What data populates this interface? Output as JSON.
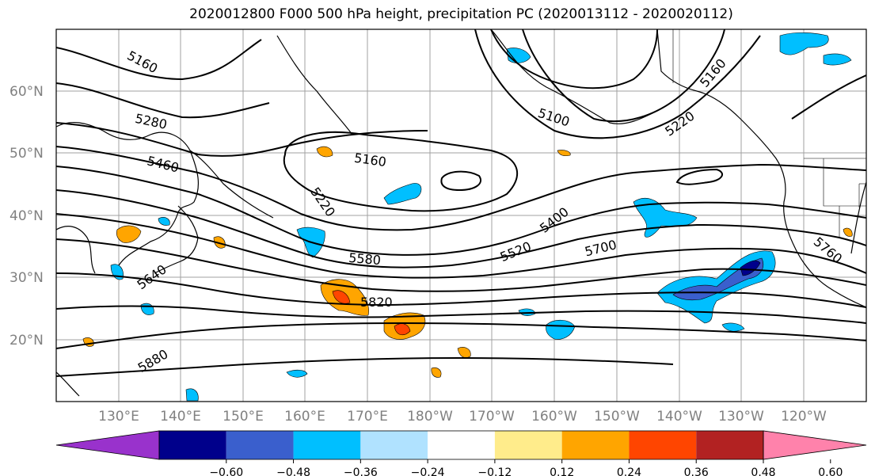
{
  "title": "2020012800 F000 500 hPa height, precipitation PC (2020013112 - 2020020112)",
  "lat_labels": [
    "60°N",
    "50°N",
    "40°N",
    "30°N",
    "20°N"
  ],
  "lon_labels": [
    "130°E",
    "140°E",
    "150°E",
    "160°E",
    "170°E",
    "180°W",
    "170°W",
    "160°W",
    "150°W",
    "140°W",
    "130°W",
    "120°W"
  ],
  "contour_labels": [
    "5160",
    "5280",
    "5460",
    "5160",
    "5220",
    "5100",
    "5220",
    "5160",
    "5400",
    "5520",
    "5580",
    "5640",
    "5700",
    "5760",
    "5820",
    "5880"
  ],
  "colorbar": {
    "colors": [
      "#9932cc",
      "#00008b",
      "#3a5fcd",
      "#00bfff",
      "#b0e2ff",
      "#ffffff",
      "#ffec8b",
      "#ffa500",
      "#ff4500",
      "#b22222",
      "#ff82ab"
    ],
    "ticks": [
      "−0.60",
      "−0.48",
      "−0.36",
      "−0.24",
      "−0.12",
      "0.12",
      "0.24",
      "0.36",
      "0.48",
      "0.60"
    ]
  }
}
